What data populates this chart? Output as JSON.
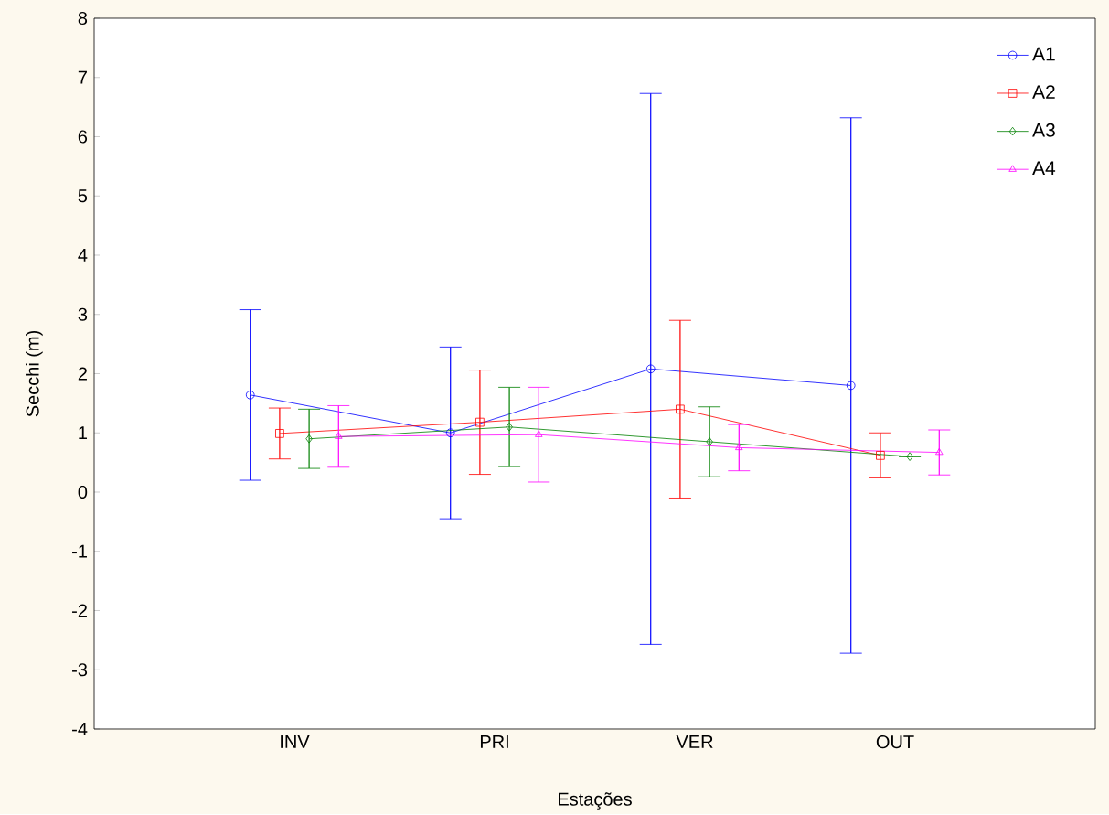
{
  "chart_data": {
    "type": "line",
    "xlabel": "Estações",
    "ylabel": "Secchi (m)",
    "categories": [
      "INV",
      "PRI",
      "VER",
      "OUT"
    ],
    "ylim": [
      -4,
      8
    ],
    "yticks": [
      -4,
      -3,
      -2,
      -1,
      0,
      1,
      2,
      3,
      4,
      5,
      6,
      7,
      8
    ],
    "legend": "top right",
    "series": [
      {
        "name": "A1",
        "color": "#0000ff",
        "marker": "circle",
        "values": [
          1.64,
          1.0,
          2.08,
          1.8
        ],
        "errors": [
          1.44,
          1.45,
          4.65,
          4.52
        ]
      },
      {
        "name": "A2",
        "color": "#ff0000",
        "marker": "square",
        "values": [
          0.99,
          1.18,
          1.4,
          0.62
        ],
        "errors": [
          0.43,
          0.88,
          1.5,
          0.38
        ]
      },
      {
        "name": "A3",
        "color": "#008000",
        "marker": "diamond",
        "values": [
          0.9,
          1.1,
          0.85,
          0.6
        ],
        "errors": [
          0.5,
          0.67,
          0.59,
          null
        ]
      },
      {
        "name": "A4",
        "color": "#ff00ff",
        "marker": "triangle",
        "values": [
          0.94,
          0.97,
          0.75,
          0.67
        ],
        "errors": [
          0.52,
          0.8,
          0.39,
          0.38
        ]
      }
    ]
  }
}
